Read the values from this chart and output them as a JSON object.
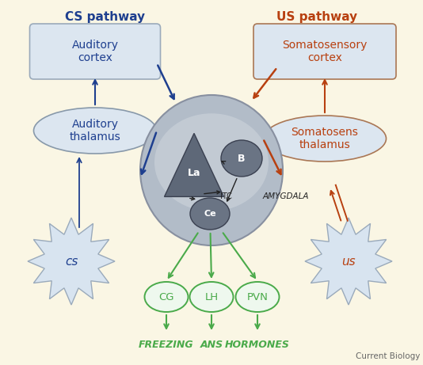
{
  "background_color": "#faf6e4",
  "title_cs": "CS pathway",
  "title_us": "US pathway",
  "cs_color": "#1e3f8f",
  "us_color": "#b84010",
  "green_color": "#4aaa4a",
  "dark_node": "#606878",
  "watermark": "Current Biology",
  "box_fill": "#dce6f0",
  "box_edge": "#9aaabb",
  "oval_edge_cs": "#8899aa",
  "oval_edge_us": "#aa7755",
  "star_fill": "#d8e4f0",
  "star_edge": "#9aaabb",
  "amyg_outer": "#b0b8c5",
  "amyg_inner": "#c8cfd8",
  "green_oval_edge": "#4aaa4a",
  "green_oval_fill": "#eef8ee"
}
